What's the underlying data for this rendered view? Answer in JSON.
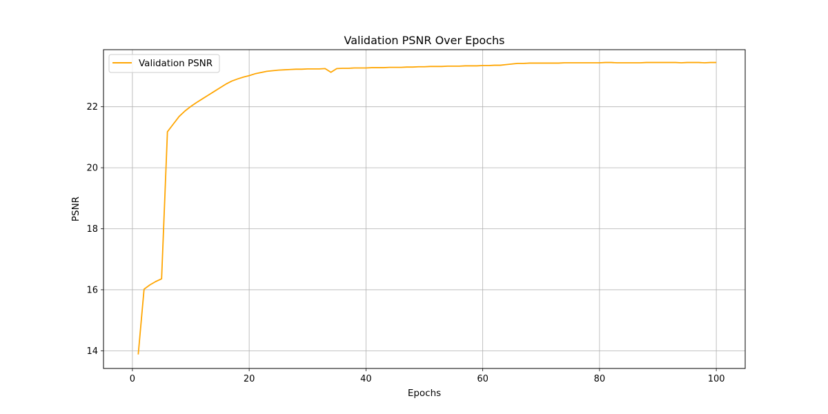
{
  "chart_data": {
    "type": "line",
    "title": "Validation PSNR Over Epochs",
    "xlabel": "Epochs",
    "ylabel": "PSNR",
    "xlim": [
      -4.95,
      104.95
    ],
    "ylim": [
      13.42,
      23.87
    ],
    "xticks": [
      0,
      20,
      40,
      60,
      80,
      100
    ],
    "yticks": [
      14,
      16,
      18,
      20,
      22
    ],
    "grid": true,
    "legend_position": "upper-left",
    "series": [
      {
        "name": "Validation PSNR",
        "color": "#ffa500",
        "x": [
          1,
          2,
          3,
          4,
          5,
          6,
          7,
          8,
          9,
          10,
          11,
          12,
          13,
          14,
          15,
          16,
          17,
          18,
          19,
          20,
          21,
          22,
          23,
          24,
          25,
          26,
          27,
          28,
          29,
          30,
          31,
          32,
          33,
          34,
          35,
          36,
          37,
          38,
          39,
          40,
          41,
          42,
          43,
          44,
          45,
          46,
          47,
          48,
          49,
          50,
          51,
          52,
          53,
          54,
          55,
          56,
          57,
          58,
          59,
          60,
          61,
          62,
          63,
          64,
          65,
          66,
          67,
          68,
          69,
          70,
          71,
          72,
          73,
          74,
          75,
          76,
          77,
          78,
          79,
          80,
          81,
          82,
          83,
          84,
          85,
          86,
          87,
          88,
          89,
          90,
          91,
          92,
          93,
          94,
          95,
          96,
          97,
          98,
          99,
          100
        ],
        "y": [
          13.88,
          16.02,
          16.16,
          16.27,
          16.36,
          21.18,
          21.43,
          21.68,
          21.86,
          22.01,
          22.14,
          22.26,
          22.38,
          22.5,
          22.62,
          22.74,
          22.84,
          22.91,
          22.97,
          23.02,
          23.08,
          23.12,
          23.16,
          23.18,
          23.2,
          23.21,
          23.22,
          23.23,
          23.23,
          23.24,
          23.24,
          23.24,
          23.25,
          23.13,
          23.25,
          23.26,
          23.26,
          23.27,
          23.27,
          23.27,
          23.28,
          23.28,
          23.28,
          23.29,
          23.29,
          23.29,
          23.3,
          23.3,
          23.31,
          23.31,
          23.32,
          23.32,
          23.32,
          23.33,
          23.33,
          23.33,
          23.34,
          23.34,
          23.34,
          23.35,
          23.35,
          23.36,
          23.36,
          23.38,
          23.4,
          23.42,
          23.42,
          23.43,
          23.43,
          23.43,
          23.43,
          23.43,
          23.43,
          23.44,
          23.44,
          23.44,
          23.44,
          23.44,
          23.44,
          23.44,
          23.45,
          23.45,
          23.44,
          23.44,
          23.44,
          23.44,
          23.44,
          23.45,
          23.45,
          23.45,
          23.45,
          23.45,
          23.45,
          23.44,
          23.45,
          23.45,
          23.45,
          23.44,
          23.45,
          23.45
        ]
      }
    ]
  }
}
